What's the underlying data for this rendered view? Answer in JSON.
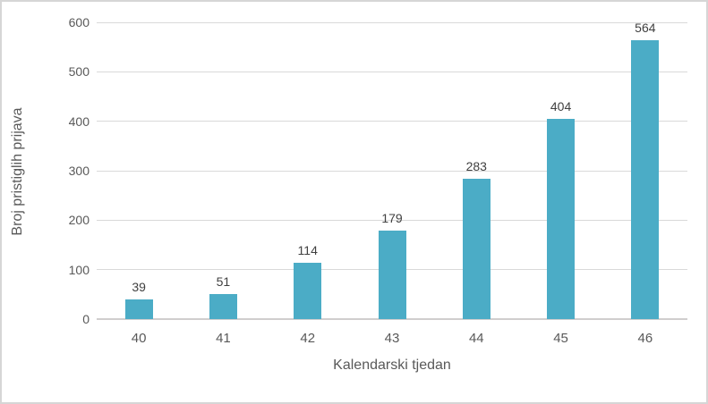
{
  "chart_data": {
    "type": "bar",
    "categories": [
      "40",
      "41",
      "42",
      "43",
      "44",
      "45",
      "46"
    ],
    "values": [
      39,
      51,
      114,
      179,
      283,
      404,
      564
    ],
    "title": "",
    "xlabel": "Kalendarski tjedan",
    "ylabel": "Broj pristiglih prijava",
    "ylim": [
      0,
      600
    ],
    "yticks": [
      0,
      100,
      200,
      300,
      400,
      500,
      600
    ],
    "grid": true,
    "legend_position": "none",
    "data_labels": true
  },
  "colors": {
    "bar_fill": "#4BACC6",
    "gridline": "#D9D9D9",
    "axis_line": "#D0CECE",
    "tick_label": "#595959",
    "data_label": "#404040",
    "frame_border": "#D6D6D6",
    "background": "#FFFFFF"
  }
}
